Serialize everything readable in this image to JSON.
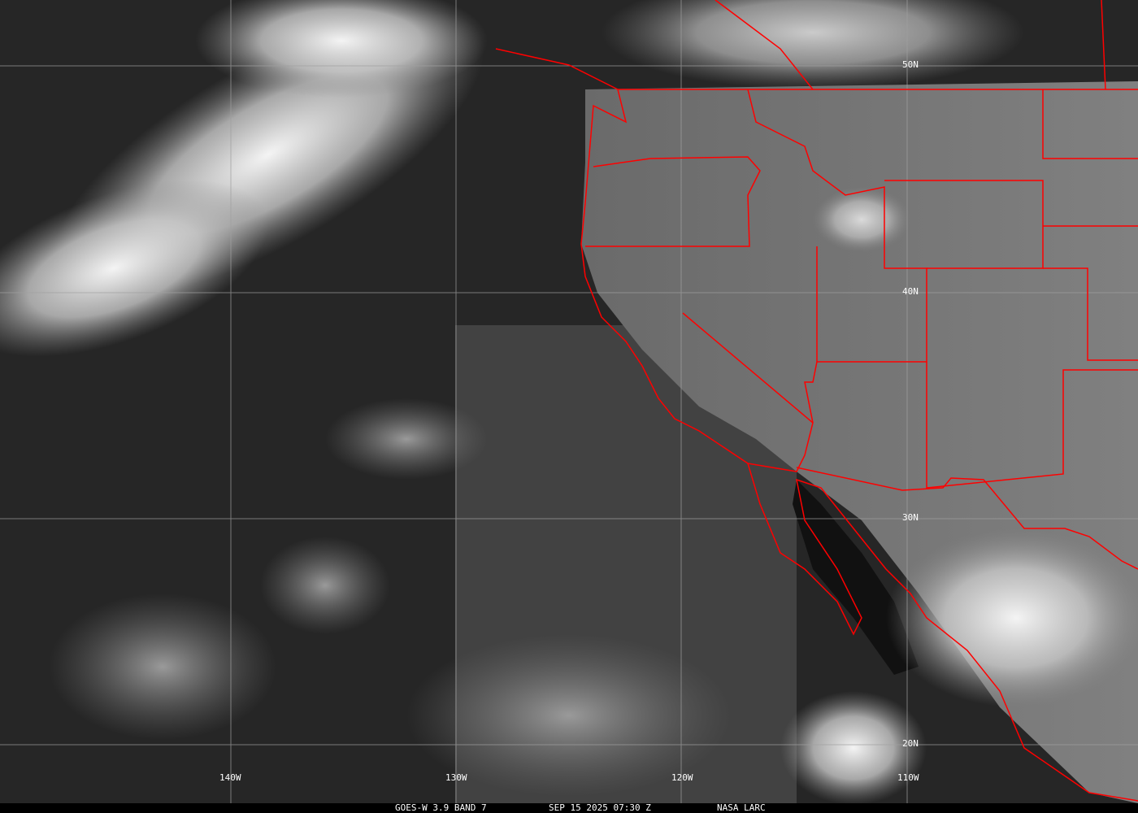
{
  "image": {
    "description_labels": {
      "longitudes": [
        "140W",
        "130W",
        "120W",
        "110W"
      ],
      "latitudes": [
        "50N",
        "40N",
        "30N",
        "20N"
      ]
    },
    "caption": {
      "satellite": "GOES-W 3.9 BAND 7",
      "datetime": "SEP 15 2025 07:30 Z",
      "source": "NASA LARC"
    },
    "colors": {
      "borders": "#ff0000",
      "grid": "#a0a0a0",
      "caption_bg": "#000000"
    }
  }
}
